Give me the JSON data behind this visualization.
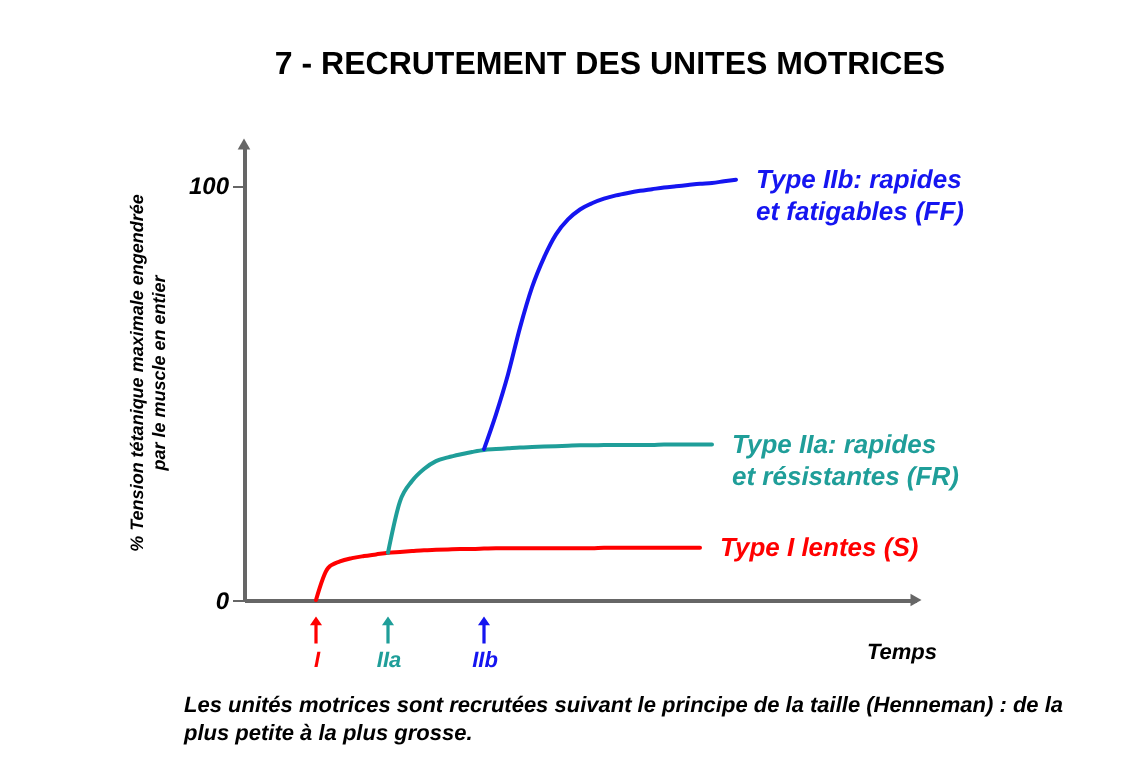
{
  "chart_data": {
    "type": "line",
    "title": "7 - RECRUTEMENT DES UNITES MOTRICES",
    "xlabel": "Temps",
    "ylabel": "% Tension tétanique maximale engendrée par le muscle en entier",
    "categories": [
      null,
      null,
      null,
      null,
      null,
      null,
      "I",
      null,
      null,
      null,
      null,
      null,
      "IIa",
      null,
      null,
      null,
      null,
      null,
      null,
      null,
      "IIb",
      null,
      null,
      null,
      null,
      null,
      null,
      null,
      null,
      null,
      null,
      null,
      null,
      null,
      null,
      null,
      null,
      null,
      null,
      null,
      null,
      null,
      null,
      null,
      null,
      null,
      null,
      null,
      null,
      null,
      null,
      null,
      null,
      null,
      null,
      null,
      null
    ],
    "series": [
      {
        "name": "Type I lentes (S)",
        "color": "#ff0000",
        "values": [
          null,
          null,
          null,
          null,
          null,
          null,
          0,
          7.7,
          9.3,
          10.1,
          10.6,
          11.0,
          11.4,
          11.6,
          11.8,
          12.0,
          12.1,
          12.2,
          12.3,
          12.3,
          12.4,
          12.5,
          12.5,
          12.5,
          12.5,
          12.5,
          12.5,
          12.5,
          12.5,
          12.5,
          12.6,
          12.6,
          12.6,
          12.6,
          12.6,
          12.6,
          12.6,
          12.6,
          12.6,
          null,
          null,
          null,
          null,
          null,
          null,
          null,
          null,
          null,
          null,
          null,
          null,
          null,
          null,
          null,
          null,
          null,
          null
        ]
      },
      {
        "name": "Type IIa: rapides et résistantes (FR)",
        "color": "#1f9e99",
        "values": [
          null,
          null,
          null,
          null,
          null,
          null,
          null,
          null,
          null,
          null,
          null,
          null,
          11.4,
          23.8,
          28.7,
          31.6,
          33.5,
          34.4,
          35.1,
          35.7,
          36.2,
          36.4,
          36.6,
          36.8,
          36.9,
          37.0,
          37.1,
          37.2,
          37.3,
          37.3,
          37.4,
          37.4,
          37.4,
          37.4,
          37.4,
          37.5,
          37.5,
          37.5,
          37.5,
          37.5,
          null,
          null,
          null,
          null,
          null,
          null,
          null,
          null,
          null,
          null,
          null,
          null,
          null,
          null,
          null,
          null,
          null
        ]
      },
      {
        "name": "Type IIb: rapides et fatigables (FF)",
        "color": "#1515f0",
        "values": [
          null,
          null,
          null,
          null,
          null,
          null,
          null,
          null,
          null,
          null,
          null,
          null,
          null,
          null,
          null,
          null,
          null,
          null,
          null,
          null,
          36.4,
          44.8,
          54.4,
          65.7,
          75.4,
          82.6,
          88.2,
          91.8,
          94.2,
          95.7,
          96.8,
          97.6,
          98.2,
          98.7,
          99.1,
          99.5,
          99.8,
          100.1,
          100.4,
          100.6,
          101.0,
          101.4,
          null,
          null,
          null,
          null,
          null,
          null,
          null,
          null,
          null,
          null,
          null,
          null,
          null,
          null,
          null
        ]
      }
    ],
    "ylim": [
      0,
      110
    ],
    "yticks": [
      0,
      100
    ],
    "annotations": [
      "Les unités motrices sont recrutées suivant le principe de la taille (Henneman) : de la plus petite à la plus grosse."
    ]
  }
}
